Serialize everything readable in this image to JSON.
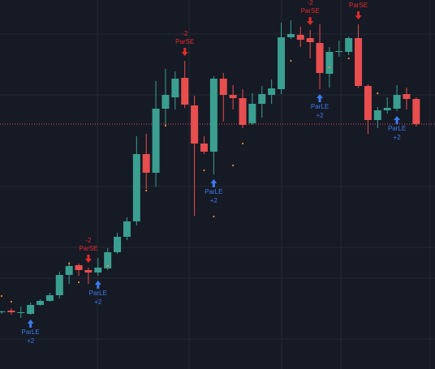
{
  "chart_data": {
    "type": "candlestick",
    "up_color": "#3a9f91",
    "down_color": "#e84e4e",
    "ylim": [
      0,
      455
    ],
    "open": [
      70,
      72,
      70,
      68,
      79,
      84,
      91,
      116,
      128,
      122,
      119,
      124,
      144,
      163,
      182,
      265,
      242,
      321,
      335,
      359,
      325,
      278,
      268,
      358,
      338,
      334,
      303,
      327,
      338,
      345,
      409,
      412,
      408,
      402,
      364,
      392,
      391,
      408,
      349,
      307,
      319,
      321,
      339,
      333
    ],
    "high": [
      72,
      75,
      77,
      82,
      86,
      94,
      120,
      132,
      130,
      125,
      137,
      149,
      168,
      187,
      287,
      290,
      355,
      370,
      367,
      380,
      337,
      287,
      361,
      365,
      350,
      345,
      340,
      349,
      357,
      427,
      430,
      422,
      418,
      425,
      397,
      405,
      410,
      425,
      351,
      323,
      335,
      350,
      347,
      335
    ],
    "low": [
      68,
      67,
      63,
      67,
      78,
      83,
      87,
      105,
      115,
      105,
      115,
      122,
      142,
      159,
      177,
      222,
      225,
      300,
      320,
      322,
      189,
      265,
      240,
      305,
      320,
      297,
      301,
      310,
      327,
      339,
      407,
      397,
      383,
      345,
      347,
      385,
      387,
      347,
      290,
      297,
      315,
      318,
      320,
      299
    ],
    "close": [
      71,
      70,
      70,
      79,
      84,
      91,
      116,
      127,
      122,
      119,
      125,
      144,
      163,
      182,
      265,
      242,
      321,
      338,
      358,
      326,
      278,
      268,
      358,
      338,
      334,
      301,
      327,
      339,
      346,
      409,
      413,
      406,
      403,
      365,
      391,
      392,
      408,
      349,
      307,
      319,
      322,
      338,
      333,
      302
    ],
    "sar": {
      "color": "#f0892e",
      "values": [
        90,
        83,
        null,
        null,
        null,
        null,
        null,
        130,
        107,
        null,
        null,
        127,
        null,
        null,
        null,
        220,
        null,
        300,
        null,
        null,
        null,
        245,
        188,
        null,
        251,
        278,
        null,
        null,
        null,
        null,
        380,
        null,
        null,
        null,
        372,
        null,
        383,
        null,
        null,
        340,
        null,
        null,
        null,
        null
      ]
    },
    "long_color": "#3d7bf0",
    "short_color": "#e32b2b",
    "long_signals": [
      null,
      null,
      null,
      {
        "name": "ParLE",
        "qty": "+2"
      },
      null,
      null,
      null,
      null,
      null,
      null,
      {
        "name": "ParLE",
        "qty": "+2"
      },
      null,
      null,
      null,
      null,
      null,
      null,
      null,
      null,
      null,
      null,
      null,
      {
        "name": "ParLE",
        "qty": "+2"
      },
      null,
      null,
      null,
      null,
      null,
      null,
      null,
      null,
      null,
      null,
      {
        "name": "ParLE",
        "qty": "+2"
      },
      null,
      null,
      null,
      null,
      null,
      null,
      null,
      {
        "name": "ParLE",
        "qty": "+2"
      },
      null,
      null
    ],
    "short_signals": [
      null,
      null,
      null,
      null,
      null,
      null,
      null,
      null,
      null,
      {
        "name": "ParSE",
        "qty": "-2"
      },
      null,
      null,
      null,
      null,
      null,
      null,
      null,
      null,
      null,
      {
        "name": "ParSE",
        "qty": "-2"
      },
      null,
      null,
      null,
      null,
      null,
      null,
      null,
      null,
      null,
      null,
      null,
      null,
      {
        "name": "ParSE",
        "qty": "-2"
      },
      null,
      null,
      null,
      null,
      {
        "name": "ParSE",
        "qty": "-2"
      },
      null,
      null,
      null,
      null,
      null,
      null
    ]
  }
}
